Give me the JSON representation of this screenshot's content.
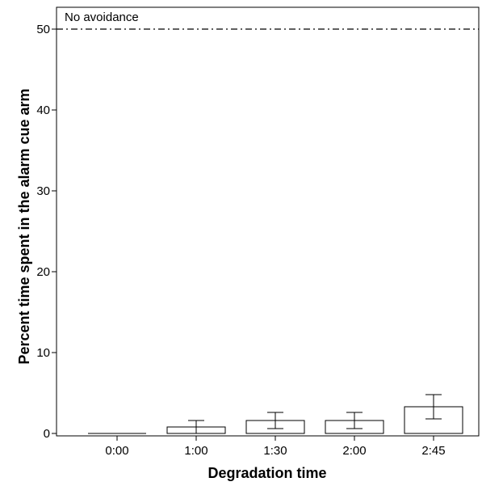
{
  "chart_data": {
    "type": "bar",
    "xlabel": "Degradation time",
    "ylabel": "Percent time spent in the alarm cue arm",
    "categories": [
      "0:00",
      "1:00",
      "1:30",
      "2:00",
      "2:45"
    ],
    "values": [
      0,
      0.8,
      1.6,
      1.6,
      3.3
    ],
    "error_low": [
      0,
      0,
      0.6,
      0.6,
      1.8
    ],
    "error_high": [
      0,
      1.6,
      2.6,
      2.6,
      4.8
    ],
    "ylim": [
      0,
      50
    ],
    "yticks": [
      0,
      10,
      20,
      30,
      40,
      50
    ],
    "reference_line": {
      "value": 50,
      "label": "No avoidance",
      "style": "dash-dot"
    },
    "grid": false,
    "bar_color": "#ffffff",
    "line_color": "#000000"
  }
}
